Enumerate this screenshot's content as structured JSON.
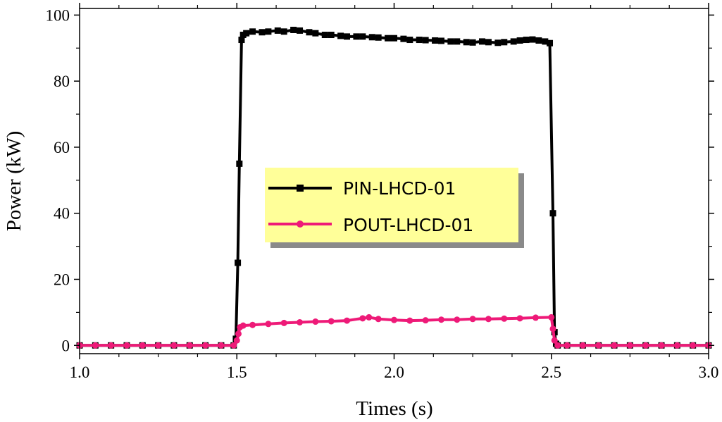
{
  "chart_data": {
    "type": "line",
    "title": "",
    "xlabel": "Times (s)",
    "ylabel": "Power (kW)",
    "xlim": [
      1.0,
      3.0
    ],
    "ylim": [
      -2.5,
      102
    ],
    "x_ticks": [
      1.0,
      1.5,
      2.0,
      2.5,
      3.0
    ],
    "x_tick_labels": [
      "1.0",
      "1.5",
      "2.0",
      "2.5",
      "3.0"
    ],
    "x_minor_ticks": [
      1.125,
      1.25,
      1.375,
      1.625,
      1.75,
      1.875,
      2.125,
      2.25,
      2.375,
      2.625,
      2.75,
      2.875
    ],
    "y_ticks": [
      0,
      20,
      40,
      60,
      80,
      100
    ],
    "y_tick_labels": [
      "0",
      "20",
      "40",
      "60",
      "80",
      "100"
    ],
    "y_minor_ticks": [
      10,
      30,
      50,
      70,
      90
    ],
    "grid": false,
    "legend": {
      "position": "center-left",
      "background": "#ffff99"
    },
    "series": [
      {
        "name": "PIN-LHCD-01",
        "color": "#000000",
        "marker": "square",
        "points": [
          [
            1.0,
            0
          ],
          [
            1.05,
            0
          ],
          [
            1.1,
            0
          ],
          [
            1.15,
            0
          ],
          [
            1.2,
            0
          ],
          [
            1.25,
            0
          ],
          [
            1.3,
            0
          ],
          [
            1.35,
            0
          ],
          [
            1.4,
            0
          ],
          [
            1.45,
            0
          ],
          [
            1.49,
            0
          ],
          [
            1.497,
            2
          ],
          [
            1.503,
            25
          ],
          [
            1.508,
            55
          ],
          [
            1.515,
            92.5
          ],
          [
            1.52,
            94
          ],
          [
            1.53,
            94.5
          ],
          [
            1.55,
            95
          ],
          [
            1.58,
            94.8
          ],
          [
            1.6,
            95
          ],
          [
            1.63,
            95.3
          ],
          [
            1.65,
            95
          ],
          [
            1.68,
            95.5
          ],
          [
            1.7,
            95.3
          ],
          [
            1.73,
            94.8
          ],
          [
            1.75,
            94.5
          ],
          [
            1.78,
            94
          ],
          [
            1.8,
            94
          ],
          [
            1.83,
            93.7
          ],
          [
            1.85,
            93.5
          ],
          [
            1.88,
            93.5
          ],
          [
            1.9,
            93.5
          ],
          [
            1.93,
            93.3
          ],
          [
            1.95,
            93.2
          ],
          [
            1.98,
            93
          ],
          [
            2.0,
            93
          ],
          [
            2.03,
            92.8
          ],
          [
            2.05,
            92.5
          ],
          [
            2.08,
            92.5
          ],
          [
            2.1,
            92.4
          ],
          [
            2.13,
            92.3
          ],
          [
            2.15,
            92.2
          ],
          [
            2.18,
            92
          ],
          [
            2.2,
            92
          ],
          [
            2.23,
            91.8
          ],
          [
            2.25,
            91.7
          ],
          [
            2.28,
            92
          ],
          [
            2.3,
            91.8
          ],
          [
            2.33,
            91.6
          ],
          [
            2.35,
            91.8
          ],
          [
            2.38,
            92
          ],
          [
            2.4,
            92.3
          ],
          [
            2.42,
            92.5
          ],
          [
            2.44,
            92.6
          ],
          [
            2.46,
            92.3
          ],
          [
            2.48,
            92
          ],
          [
            2.495,
            91.5
          ],
          [
            2.505,
            40
          ],
          [
            2.51,
            4
          ],
          [
            2.515,
            0.5
          ],
          [
            2.52,
            0
          ],
          [
            2.55,
            0
          ],
          [
            2.6,
            0
          ],
          [
            2.65,
            0
          ],
          [
            2.7,
            0
          ],
          [
            2.75,
            0
          ],
          [
            2.8,
            0
          ],
          [
            2.85,
            0
          ],
          [
            2.9,
            0
          ],
          [
            2.95,
            0
          ],
          [
            3.0,
            0
          ]
        ]
      },
      {
        "name": "POUT-LHCD-01",
        "color": "#ee1a78",
        "marker": "circle",
        "points": [
          [
            1.0,
            0
          ],
          [
            1.05,
            0
          ],
          [
            1.1,
            0
          ],
          [
            1.15,
            0
          ],
          [
            1.2,
            0
          ],
          [
            1.25,
            0
          ],
          [
            1.3,
            0
          ],
          [
            1.35,
            0
          ],
          [
            1.4,
            0
          ],
          [
            1.45,
            0
          ],
          [
            1.49,
            0
          ],
          [
            1.5,
            1.5
          ],
          [
            1.505,
            3.5
          ],
          [
            1.51,
            5.5
          ],
          [
            1.52,
            6
          ],
          [
            1.55,
            6.2
          ],
          [
            1.6,
            6.5
          ],
          [
            1.65,
            6.8
          ],
          [
            1.7,
            7
          ],
          [
            1.75,
            7.2
          ],
          [
            1.8,
            7.3
          ],
          [
            1.85,
            7.5
          ],
          [
            1.9,
            8.2
          ],
          [
            1.92,
            8.5
          ],
          [
            1.95,
            8
          ],
          [
            2.0,
            7.7
          ],
          [
            2.05,
            7.5
          ],
          [
            2.1,
            7.6
          ],
          [
            2.15,
            7.8
          ],
          [
            2.2,
            7.8
          ],
          [
            2.25,
            8
          ],
          [
            2.3,
            8
          ],
          [
            2.35,
            8.1
          ],
          [
            2.4,
            8.2
          ],
          [
            2.45,
            8.4
          ],
          [
            2.5,
            8.5
          ],
          [
            2.505,
            5
          ],
          [
            2.51,
            1.5
          ],
          [
            2.52,
            0
          ],
          [
            2.55,
            0
          ],
          [
            2.6,
            0
          ],
          [
            2.65,
            0
          ],
          [
            2.7,
            0
          ],
          [
            2.75,
            0
          ],
          [
            2.8,
            0
          ],
          [
            2.85,
            0
          ],
          [
            2.9,
            0
          ],
          [
            2.95,
            0
          ],
          [
            3.0,
            0
          ]
        ]
      }
    ]
  }
}
